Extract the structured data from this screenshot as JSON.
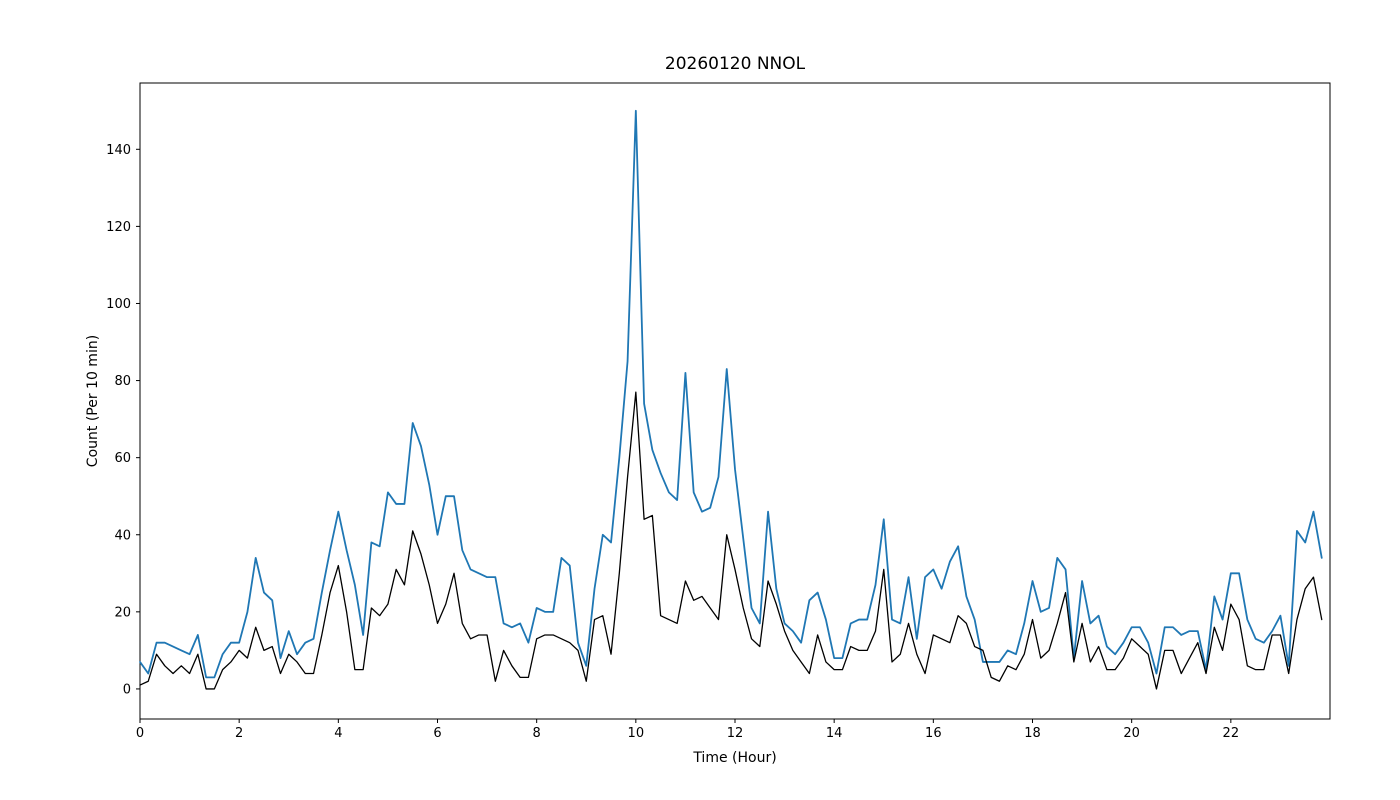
{
  "figure": {
    "title": "20260120 NNOL",
    "xlabel": "Time (Hour)",
    "ylabel": "Count (Per 10 min)"
  },
  "chart_data": {
    "type": "line",
    "title": "20260120 NNOL",
    "xlabel": "Time (Hour)",
    "ylabel": "Count (Per 10 min)",
    "grid": false,
    "legend": "none",
    "xlim": [
      0,
      24
    ],
    "ylim": [
      -7.8,
      157.2
    ],
    "x_tick_values": [
      0,
      2,
      4,
      6,
      8,
      10,
      12,
      14,
      16,
      18,
      20,
      22
    ],
    "x_tick_labels": [
      "0",
      "2",
      "4",
      "6",
      "8",
      "10",
      "12",
      "14",
      "16",
      "18",
      "20",
      "22"
    ],
    "y_tick_values": [
      0,
      20,
      40,
      60,
      80,
      100,
      120,
      140
    ],
    "y_tick_labels": [
      "0",
      "20",
      "40",
      "60",
      "80",
      "100",
      "120",
      "140"
    ],
    "x_start_hour": 0,
    "x_step_hours": 0.1666667,
    "series": [
      {
        "name": "blue-series",
        "color": "#1f77b4",
        "line_width": 1.8,
        "values": [
          7,
          4,
          12,
          12,
          11,
          10,
          9,
          14,
          3,
          3,
          9,
          12,
          12,
          20,
          34,
          25,
          23,
          8,
          15,
          9,
          12,
          13,
          25,
          36,
          46,
          36,
          27,
          14,
          38,
          37,
          51,
          48,
          48,
          69,
          63,
          53,
          40,
          50,
          50,
          36,
          31,
          30,
          29,
          29,
          17,
          16,
          17,
          12,
          21,
          20,
          20,
          34,
          32,
          12,
          6,
          26,
          40,
          38,
          60,
          85,
          150,
          74,
          62,
          56,
          51,
          49,
          82,
          51,
          46,
          47,
          55,
          83,
          57,
          39,
          21,
          17,
          46,
          26,
          17,
          15,
          12,
          23,
          25,
          18,
          8,
          8,
          17,
          18,
          18,
          27,
          44,
          18,
          17,
          29,
          13,
          29,
          31,
          26,
          33,
          37,
          24,
          18,
          7,
          7,
          7,
          10,
          9,
          17,
          28,
          20,
          21,
          34,
          31,
          8,
          28,
          17,
          19,
          11,
          9,
          12,
          16,
          16,
          12,
          4,
          16,
          16,
          14,
          15,
          15,
          5,
          24,
          18,
          30,
          30,
          18,
          13,
          12,
          15,
          19,
          6,
          41,
          38,
          46,
          34
        ]
      },
      {
        "name": "black-series",
        "color": "#000000",
        "line_width": 1.3,
        "values": [
          1,
          2,
          9,
          6,
          4,
          6,
          4,
          9,
          0,
          0,
          5,
          7,
          10,
          8,
          16,
          10,
          11,
          4,
          9,
          7,
          4,
          4,
          14,
          25,
          32,
          20,
          5,
          5,
          21,
          19,
          22,
          31,
          27,
          41,
          35,
          27,
          17,
          22,
          30,
          17,
          13,
          14,
          14,
          2,
          10,
          6,
          3,
          3,
          13,
          14,
          14,
          13,
          12,
          10,
          2,
          18,
          19,
          9,
          30,
          55,
          77,
          44,
          45,
          19,
          18,
          17,
          28,
          23,
          24,
          21,
          18,
          40,
          31,
          21,
          13,
          11,
          28,
          22,
          15,
          10,
          7,
          4,
          14,
          7,
          5,
          5,
          11,
          10,
          10,
          15,
          31,
          7,
          9,
          17,
          9,
          4,
          14,
          13,
          12,
          19,
          17,
          11,
          10,
          3,
          2,
          6,
          5,
          9,
          18,
          8,
          10,
          17,
          25,
          7,
          17,
          7,
          11,
          5,
          5,
          8,
          13,
          11,
          9,
          0,
          10,
          10,
          4,
          8,
          12,
          4,
          16,
          10,
          22,
          18,
          6,
          5,
          5,
          14,
          14,
          4,
          18,
          26,
          29,
          18
        ]
      }
    ]
  }
}
